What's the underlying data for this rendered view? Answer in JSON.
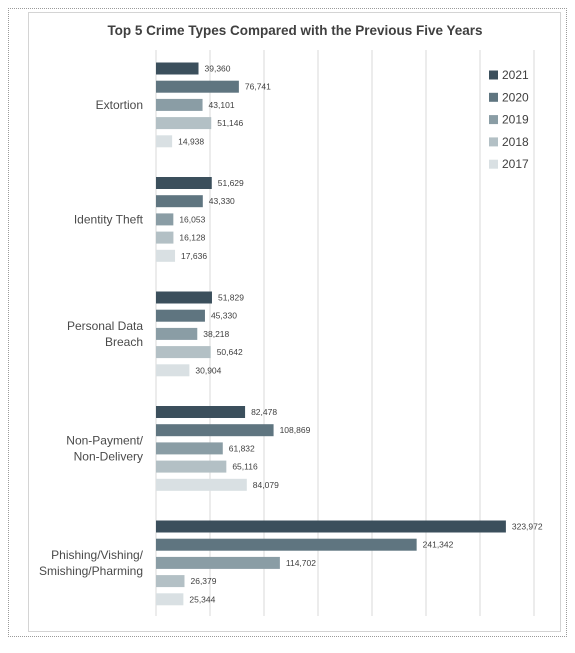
{
  "chart_data": {
    "type": "bar",
    "orientation": "horizontal",
    "title": "Top 5 Crime Types Compared with the Previous Five Years",
    "categories": [
      [
        "Extortion"
      ],
      [
        "Identity Theft"
      ],
      [
        "Personal Data",
        "Breach"
      ],
      [
        "Non-Payment/",
        "Non-Delivery"
      ],
      [
        "Phishing/Vishing/",
        "Smishing/Pharming"
      ]
    ],
    "series": [
      {
        "name": "2021",
        "color": "#3b4f5c",
        "values": [
          39360,
          51629,
          51829,
          82478,
          323972
        ],
        "labels": [
          "39,360",
          "51,629",
          "51,829",
          "82,478",
          "323,972"
        ]
      },
      {
        "name": "2020",
        "color": "#5f7580",
        "values": [
          76741,
          43330,
          45330,
          108869,
          241342
        ],
        "labels": [
          "76,741",
          "43,330",
          "45,330",
          "108,869",
          "241,342"
        ]
      },
      {
        "name": "2019",
        "color": "#8a9da5",
        "values": [
          43101,
          16053,
          38218,
          61832,
          114702
        ],
        "labels": [
          "43,101",
          "16,053",
          "38,218",
          "61,832",
          "114,702"
        ]
      },
      {
        "name": "2018",
        "color": "#b3c0c5",
        "values": [
          51146,
          16128,
          50642,
          65116,
          26379
        ],
        "labels": [
          "51,146",
          "16,128",
          "50,642",
          "65,116",
          "26,379"
        ]
      },
      {
        "name": "2017",
        "color": "#d9e0e3",
        "values": [
          14938,
          17636,
          30904,
          84079,
          25344
        ],
        "labels": [
          "14,938",
          "17,636",
          "30,904",
          "84,079",
          "25,344"
        ]
      }
    ],
    "xlim": [
      0,
      350000
    ],
    "grid": true,
    "legend_position": "top-right"
  }
}
